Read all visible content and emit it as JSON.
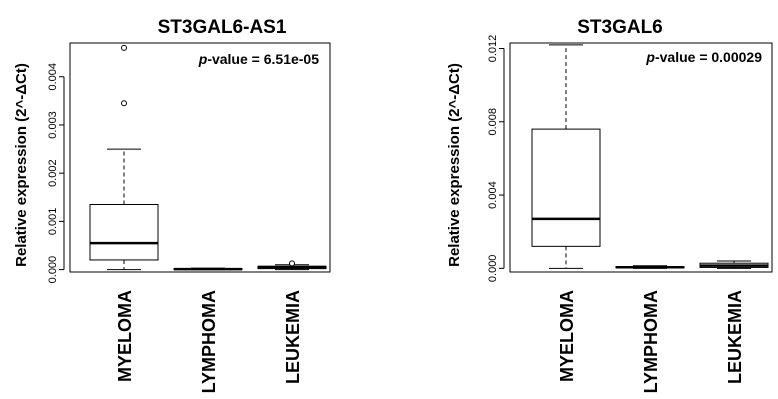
{
  "chart_data": [
    {
      "type": "boxplot",
      "title": "ST3GAL6-AS1",
      "ylabel": "Relative  expression (2^-ΔCt)",
      "annotation": {
        "italic": "p",
        "text": "-value = 6.51e-05"
      },
      "categories": [
        "MYELOMA",
        "LYMPHOMA",
        "LEUKEMIA"
      ],
      "ylim": [
        -5e-05,
        0.0047
      ],
      "yticks": [
        0.0,
        0.001,
        0.002,
        0.003,
        0.004
      ],
      "ytick_labels": [
        "0.000",
        "0.001",
        "0.002",
        "0.003",
        "0.004"
      ],
      "boxes": [
        {
          "whisker_low": 0.0,
          "q1": 0.0002,
          "median": 0.00055,
          "q3": 0.00135,
          "whisker_high": 0.0025,
          "outliers": [
            0.00345,
            0.0046
          ]
        },
        {
          "whisker_low": 0.0,
          "q1": 0.0,
          "median": 1e-05,
          "q3": 2e-05,
          "whisker_high": 3e-05,
          "outliers": []
        },
        {
          "whisker_low": 0.0,
          "q1": 2e-05,
          "median": 5e-05,
          "q3": 7e-05,
          "whisker_high": 0.0001,
          "outliers": [
            0.00013
          ]
        }
      ],
      "grid": false,
      "legend": "none"
    },
    {
      "type": "boxplot",
      "title": "ST3GAL6",
      "ylabel": "Relative  expression (2^-ΔCt)",
      "annotation": {
        "italic": "p",
        "text": "-value = 0.00029"
      },
      "categories": [
        "MYELOMA",
        "LYMPHOMA",
        "LEUKEMIA"
      ],
      "ylim": [
        -0.0002,
        0.0123
      ],
      "yticks": [
        0.0,
        0.004,
        0.008,
        0.012
      ],
      "ytick_labels": [
        "0.000",
        "0.004",
        "0.008",
        "0.012"
      ],
      "boxes": [
        {
          "whisker_low": 0.0,
          "q1": 0.0012,
          "median": 0.0027,
          "q3": 0.0076,
          "whisker_high": 0.0122,
          "outliers": []
        },
        {
          "whisker_low": 0.0,
          "q1": 2e-05,
          "median": 6e-05,
          "q3": 0.0001,
          "whisker_high": 0.00014,
          "outliers": []
        },
        {
          "whisker_low": 0.0,
          "q1": 5e-05,
          "median": 0.00015,
          "q3": 0.00028,
          "whisker_high": 0.0004,
          "outliers": []
        }
      ],
      "grid": false,
      "legend": "none"
    }
  ]
}
